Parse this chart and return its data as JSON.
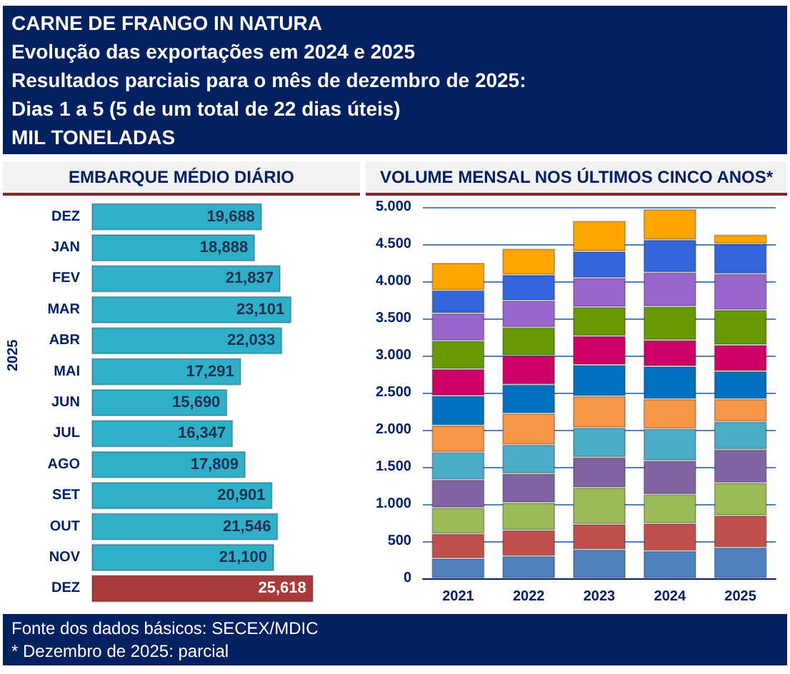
{
  "chart_data": [
    {
      "type": "bar",
      "orientation": "horizontal",
      "title": "EMBARQUE MÉDIO DIÁRIO",
      "subtitle": "CARNE DE FRANGO IN NATURA\nEvolução das exportações em 2024 e 2025\nResultados parciais para o mês de dezembro de 2025:\nDias 1 a 5 (5 de um total de 22 dias úteis)\nMIL TONELADAS",
      "categories": [
        "DEZ",
        "JAN",
        "FEV",
        "MAR",
        "ABR",
        "MAI",
        "JUN",
        "JUL",
        "AGO",
        "SET",
        "OUT",
        "NOV",
        "DEZ"
      ],
      "values": [
        19.688,
        18.888,
        21.837,
        23.101,
        22.033,
        17.291,
        15.69,
        16.347,
        17.809,
        20.901,
        21.546,
        21.1,
        25.618
      ],
      "value_labels": [
        "19,688",
        "18,888",
        "21,837",
        "23,101",
        "22,033",
        "17,291",
        "15,690",
        "16,347",
        "17,809",
        "20,901",
        "21,546",
        "21,100",
        "25,618"
      ],
      "colors": [
        "#2fb0c8",
        "#2fb0c8",
        "#2fb0c8",
        "#2fb0c8",
        "#2fb0c8",
        "#2fb0c8",
        "#2fb0c8",
        "#2fb0c8",
        "#2fb0c8",
        "#2fb0c8",
        "#2fb0c8",
        "#2fb0c8",
        "#a83a3a"
      ],
      "annotations": [
        "2025"
      ]
    },
    {
      "type": "bar",
      "stacked": true,
      "title": "VOLUME MENSAL NOS ÚLTIMOS CINCO ANOS*",
      "categories": [
        "2021",
        "2022",
        "2023",
        "2024",
        "2025"
      ],
      "ylim": [
        0,
        5000
      ],
      "yticks": [
        0,
        500,
        {
          "value": 1000,
          "label": "1.000"
        },
        {
          "value": 1500,
          "label": "1.500"
        },
        {
          "value": 2000,
          "label": "2.000"
        },
        {
          "value": 2500,
          "label": "2.500"
        },
        {
          "value": 3000,
          "label": "3.000"
        },
        {
          "value": 3500,
          "label": "3.500"
        },
        {
          "value": 4000,
          "label": "4.000"
        },
        {
          "value": 4500,
          "label": "4.500"
        },
        {
          "value": 5000,
          "label": "5.000"
        }
      ],
      "grid": "y",
      "series": [
        {
          "color": "#4f81bd",
          "values": [
            270,
            300,
            390,
            370,
            415
          ]
        },
        {
          "color": "#c0504d",
          "values": [
            330,
            350,
            340,
            370,
            430
          ]
        },
        {
          "color": "#9bbb59",
          "values": [
            350,
            370,
            490,
            390,
            440
          ]
        },
        {
          "color": "#8064a2",
          "values": [
            380,
            390,
            410,
            455,
            450
          ]
        },
        {
          "color": "#4bacc6",
          "values": [
            370,
            390,
            400,
            430,
            375
          ]
        },
        {
          "color": "#f79646",
          "values": [
            360,
            420,
            425,
            400,
            305
          ]
        },
        {
          "color": "#0070c0",
          "values": [
            400,
            390,
            420,
            440,
            375
          ]
        },
        {
          "color": "#cc0066",
          "values": [
            360,
            390,
            390,
            355,
            355
          ]
        },
        {
          "color": "#669900",
          "values": [
            380,
            380,
            390,
            450,
            470
          ]
        },
        {
          "color": "#9966cc",
          "values": [
            370,
            360,
            390,
            460,
            485
          ]
        },
        {
          "color": "#3366dd",
          "values": [
            310,
            350,
            360,
            440,
            405
          ]
        },
        {
          "color": "#ffa500",
          "values": [
            370,
            350,
            410,
            410,
            125
          ]
        }
      ],
      "annotations": [
        "Fonte dos dados básicos: SECEX/MDIC",
        "* Dezembro de 2025: parcial"
      ]
    }
  ]
}
